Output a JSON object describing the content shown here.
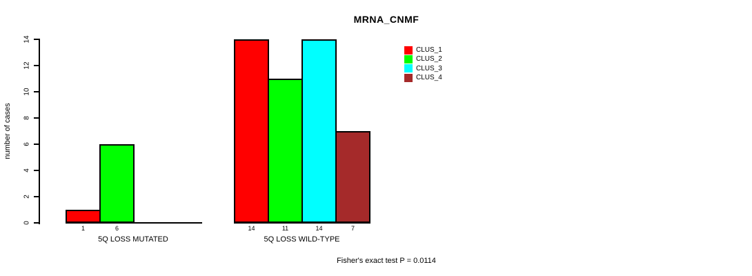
{
  "chart_data": {
    "type": "bar",
    "title": "MRNA_CNMF",
    "ylabel": "number of cases",
    "ylim": [
      0,
      14
    ],
    "yticks": [
      0,
      2,
      4,
      6,
      8,
      10,
      12,
      14
    ],
    "categories": [
      "5Q LOSS MUTATED",
      "5Q LOSS WILD-TYPE"
    ],
    "series": [
      {
        "name": "CLUS_1",
        "color": "#ff0000",
        "values": [
          1,
          14
        ]
      },
      {
        "name": "CLUS_2",
        "color": "#00ff00",
        "values": [
          6,
          11
        ]
      },
      {
        "name": "CLUS_3",
        "color": "#00ffff",
        "values": [
          0,
          14
        ]
      },
      {
        "name": "CLUS_4",
        "color": "#a52a2a",
        "values": [
          0,
          7
        ]
      }
    ],
    "bar_value_labels_shown_if_positive": true,
    "grid": false,
    "legend_position": "top-right",
    "footer": "Fisher's exact test P = 0.0114"
  }
}
